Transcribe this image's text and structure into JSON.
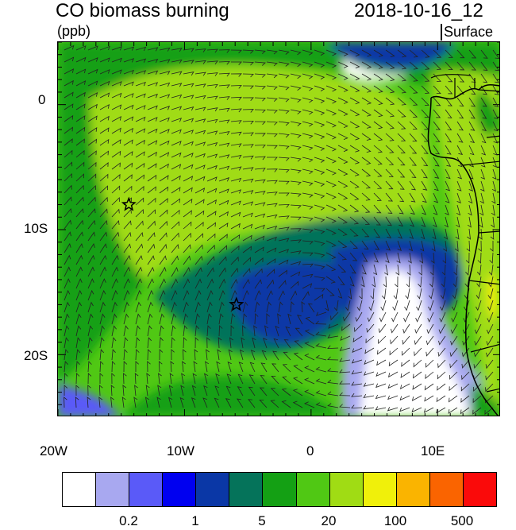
{
  "header": {
    "title": "CO biomass burning",
    "timestamp": "2018-10-16_12",
    "units": "(ppb)",
    "level": "Surface"
  },
  "axes": {
    "lon_labels": [
      "20W",
      "10W",
      "0",
      "10E"
    ],
    "lat_labels": [
      "0",
      "10S",
      "20S"
    ]
  },
  "markers": [
    {
      "name": "star-marker-1",
      "lon": -14.4,
      "lat": -8.0
    },
    {
      "name": "star-marker-2",
      "lon": -5.9,
      "lat": -16.0
    }
  ],
  "colorbar": {
    "colors": [
      "#ffffff",
      "#a8a8f0",
      "#5a5af8",
      "#0000f0",
      "#0a37a6",
      "#05735a",
      "#14a014",
      "#50c814",
      "#a0dc14",
      "#f0f00a",
      "#fab400",
      "#fa6400",
      "#fa0a0a"
    ],
    "labels": [
      "0.2",
      "1",
      "5",
      "20",
      "100",
      "500"
    ]
  }
}
